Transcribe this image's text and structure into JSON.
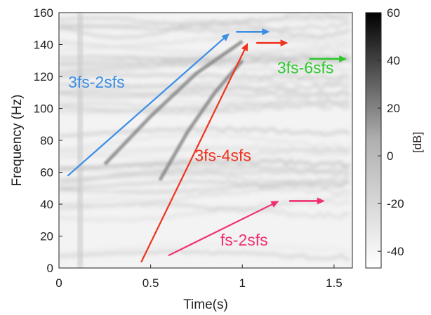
{
  "chart_data": {
    "type": "heatmap",
    "title": "",
    "xlabel": "Time(s)",
    "ylabel": "Frequency (Hz)",
    "xlim": [
      0,
      1.6
    ],
    "ylim": [
      0,
      160
    ],
    "x_ticks": [
      0,
      0.5,
      1,
      1.5
    ],
    "x_tick_labels": [
      "0",
      "0.5",
      "1",
      "1.5"
    ],
    "y_ticks": [
      0,
      20,
      40,
      60,
      80,
      100,
      120,
      140,
      160
    ],
    "y_tick_labels": [
      "0",
      "20",
      "40",
      "60",
      "80",
      "100",
      "120",
      "140",
      "160"
    ],
    "grid": false,
    "colormap": "gray-reversed",
    "colorbar": {
      "label": "[dB]",
      "range": [
        -47,
        60
      ],
      "ticks": [
        -40,
        -20,
        0,
        20,
        40,
        60
      ],
      "tick_labels": [
        "-40",
        "-20",
        "0",
        "20",
        "40",
        "60"
      ]
    },
    "spectral_lines": [
      {
        "kind": "horizontal",
        "freq_hz": 150,
        "t_start": 0.2,
        "t_end": 1.6
      },
      {
        "kind": "horizontal",
        "freq_hz": 145,
        "t_start": 1.0,
        "t_end": 1.6
      },
      {
        "kind": "horizontal",
        "freq_hz": 140,
        "t_start": 1.05,
        "t_end": 1.6
      },
      {
        "kind": "horizontal",
        "freq_hz": 135,
        "t_start": 1.1,
        "t_end": 1.6
      },
      {
        "kind": "horizontal",
        "freq_hz": 50,
        "t_start": 0.0,
        "t_end": 1.6
      },
      {
        "kind": "horizontal",
        "freq_hz": 4,
        "t_start": 0.8,
        "t_end": 1.6
      },
      {
        "kind": "chirp",
        "points": [
          [
            0.25,
            65
          ],
          [
            0.5,
            95
          ],
          [
            0.75,
            122
          ],
          [
            1.0,
            142
          ]
        ]
      },
      {
        "kind": "chirp",
        "points": [
          [
            0.55,
            55
          ],
          [
            0.7,
            85
          ],
          [
            0.85,
            110
          ],
          [
            1.0,
            130
          ]
        ]
      }
    ],
    "annotations": [
      {
        "text": "3fs-2sfs",
        "color": "#3a8ee6",
        "text_x": 0.05,
        "text_y": 113,
        "arrows": [
          {
            "from": [
              0.05,
              58
            ],
            "to": [
              0.93,
              147
            ]
          },
          {
            "from": [
              0.97,
              148
            ],
            "to": [
              1.15,
              148
            ]
          }
        ]
      },
      {
        "text": "3fs-4sfs",
        "color": "#f0321e",
        "text_x": 0.74,
        "text_y": 67,
        "arrows": [
          {
            "from": [
              0.45,
              4
            ],
            "to": [
              1.03,
              141
            ]
          },
          {
            "from": [
              1.08,
              141
            ],
            "to": [
              1.25,
              141
            ]
          }
        ]
      },
      {
        "text": "3fs-6sfs",
        "color": "#2ec82e",
        "text_x": 1.19,
        "text_y": 122,
        "arrows": [
          {
            "from": [
              1.37,
              131
            ],
            "to": [
              1.57,
              131
            ]
          }
        ]
      },
      {
        "text": "fs-2sfs",
        "color": "#f0306e",
        "text_x": 0.88,
        "text_y": 14,
        "arrows": [
          {
            "from": [
              0.6,
              8
            ],
            "to": [
              1.2,
              42
            ]
          },
          {
            "from": [
              1.26,
              42
            ],
            "to": [
              1.45,
              42
            ]
          }
        ]
      }
    ]
  }
}
